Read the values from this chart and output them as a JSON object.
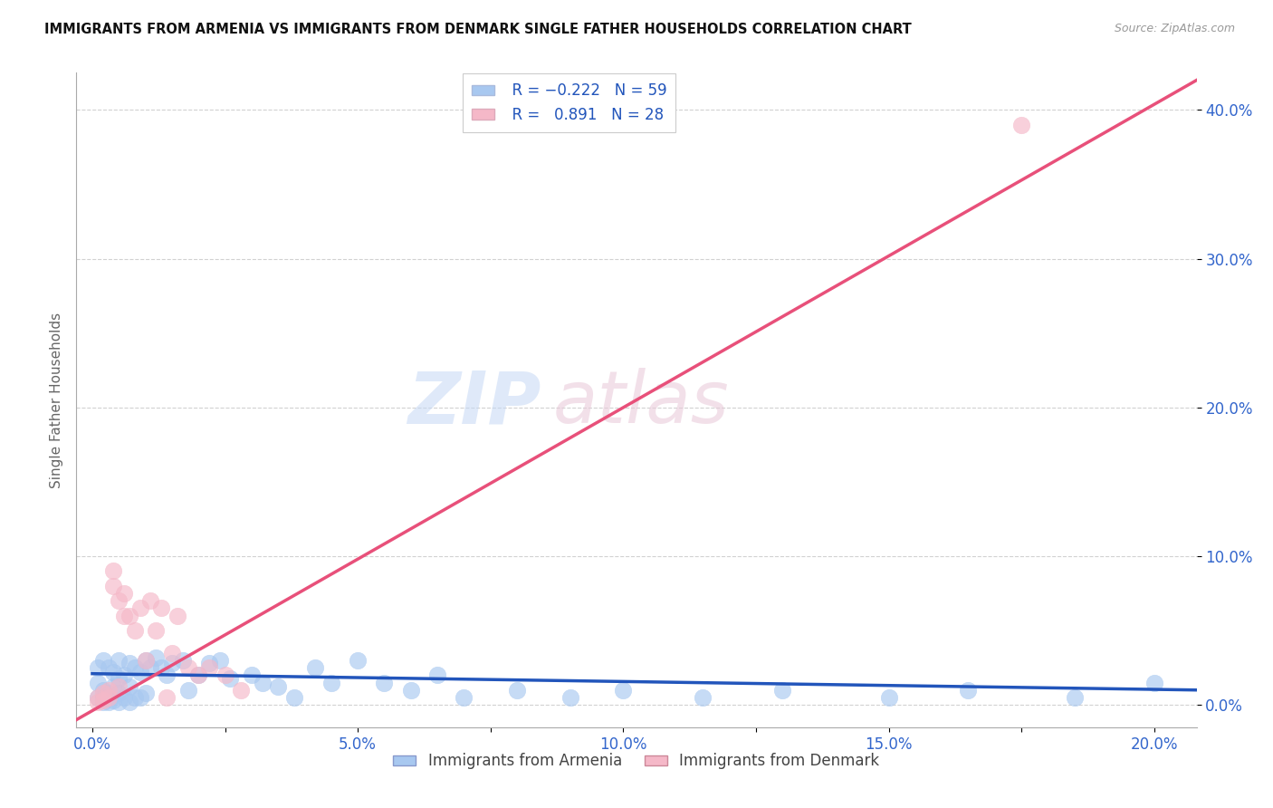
{
  "title": "IMMIGRANTS FROM ARMENIA VS IMMIGRANTS FROM DENMARK SINGLE FATHER HOUSEHOLDS CORRELATION CHART",
  "source": "Source: ZipAtlas.com",
  "xlabel_ticks": [
    "0.0%",
    "",
    "5.0%",
    "",
    "10.0%",
    "",
    "15.0%",
    "",
    "20.0%"
  ],
  "xlabel_tick_vals": [
    0.0,
    0.025,
    0.05,
    0.075,
    0.1,
    0.125,
    0.15,
    0.175,
    0.2
  ],
  "ylabel_ticks": [
    "40.0%",
    "30.0%",
    "20.0%",
    "10.0%",
    "0.0%"
  ],
  "ylabel_tick_vals": [
    0.4,
    0.3,
    0.2,
    0.1,
    0.0
  ],
  "ylabel": "Single Father Households",
  "xlim": [
    -0.003,
    0.208
  ],
  "ylim": [
    -0.015,
    0.425
  ],
  "armenia_R": -0.222,
  "armenia_N": 59,
  "denmark_R": 0.891,
  "denmark_N": 28,
  "armenia_color": "#a8c8f0",
  "denmark_color": "#f5b8c8",
  "armenia_line_color": "#2255bb",
  "denmark_line_color": "#e8507a",
  "watermark_zip": "ZIP",
  "watermark_atlas": "atlas",
  "arm_line_x0": 0.0,
  "arm_line_x1": 0.208,
  "arm_line_y0": 0.021,
  "arm_line_y1": 0.01,
  "den_line_x0": -0.003,
  "den_line_x1": 0.208,
  "den_line_y0": -0.01,
  "den_line_y1": 0.42,
  "armenia_scatter_x": [
    0.001,
    0.001,
    0.001,
    0.002,
    0.002,
    0.002,
    0.002,
    0.003,
    0.003,
    0.003,
    0.004,
    0.004,
    0.004,
    0.005,
    0.005,
    0.005,
    0.005,
    0.006,
    0.006,
    0.007,
    0.007,
    0.007,
    0.008,
    0.008,
    0.009,
    0.009,
    0.01,
    0.01,
    0.011,
    0.012,
    0.013,
    0.014,
    0.015,
    0.017,
    0.018,
    0.02,
    0.022,
    0.024,
    0.026,
    0.03,
    0.032,
    0.035,
    0.038,
    0.042,
    0.045,
    0.05,
    0.055,
    0.06,
    0.065,
    0.07,
    0.08,
    0.09,
    0.1,
    0.115,
    0.13,
    0.15,
    0.165,
    0.185,
    0.2
  ],
  "armenia_scatter_y": [
    0.025,
    0.015,
    0.005,
    0.03,
    0.01,
    0.005,
    0.002,
    0.025,
    0.008,
    0.002,
    0.022,
    0.012,
    0.003,
    0.03,
    0.018,
    0.008,
    0.002,
    0.02,
    0.005,
    0.028,
    0.012,
    0.002,
    0.025,
    0.005,
    0.022,
    0.005,
    0.03,
    0.008,
    0.025,
    0.032,
    0.025,
    0.02,
    0.028,
    0.03,
    0.01,
    0.02,
    0.028,
    0.03,
    0.018,
    0.02,
    0.015,
    0.012,
    0.005,
    0.025,
    0.015,
    0.03,
    0.015,
    0.01,
    0.02,
    0.005,
    0.01,
    0.005,
    0.01,
    0.005,
    0.01,
    0.005,
    0.01,
    0.005,
    0.015
  ],
  "denmark_scatter_x": [
    0.001,
    0.001,
    0.002,
    0.002,
    0.003,
    0.003,
    0.004,
    0.004,
    0.005,
    0.005,
    0.006,
    0.006,
    0.007,
    0.008,
    0.009,
    0.01,
    0.011,
    0.012,
    0.013,
    0.014,
    0.015,
    0.016,
    0.018,
    0.02,
    0.022,
    0.025,
    0.028,
    0.175
  ],
  "denmark_scatter_y": [
    0.005,
    0.002,
    0.008,
    0.003,
    0.01,
    0.005,
    0.08,
    0.09,
    0.07,
    0.012,
    0.06,
    0.075,
    0.06,
    0.05,
    0.065,
    0.03,
    0.07,
    0.05,
    0.065,
    0.005,
    0.035,
    0.06,
    0.025,
    0.02,
    0.025,
    0.02,
    0.01,
    0.39
  ]
}
